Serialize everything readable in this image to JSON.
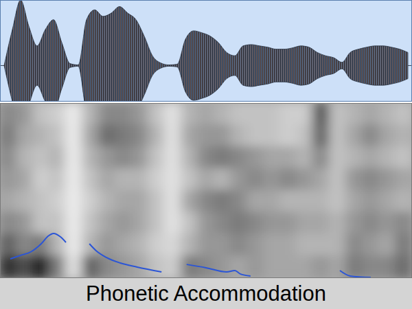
{
  "chart_data": {
    "type": "spectrogram",
    "title": "Phonetic Accommodation",
    "tick_labels": false,
    "xlim": [
      0,
      100
    ],
    "waveform": {
      "ylim": [
        -0.55,
        1
      ],
      "x": [
        1,
        3,
        5,
        7,
        9,
        11,
        13,
        15,
        17,
        19,
        21,
        23,
        25,
        27,
        29,
        31,
        33,
        35,
        37,
        39,
        41,
        43,
        45,
        47,
        49,
        51,
        53,
        55,
        57,
        59,
        61,
        63,
        65,
        67,
        69,
        71,
        73,
        75,
        77,
        79,
        81,
        83,
        85,
        87,
        89,
        91,
        93,
        95,
        97,
        99
      ],
      "values": [
        0,
        0.55,
        1.0,
        0.6,
        0.3,
        0.55,
        0.7,
        0.35,
        0.03,
        0.01,
        0.7,
        0.85,
        0.75,
        0.8,
        0.9,
        0.8,
        0.7,
        0.45,
        0.15,
        0.04,
        0.01,
        0.02,
        0.4,
        0.53,
        0.5,
        0.45,
        0.35,
        0.2,
        0.15,
        0.3,
        0.32,
        0.3,
        0.28,
        0.25,
        0.25,
        0.27,
        0.3,
        0.28,
        0.2,
        0.15,
        0.12,
        0.05,
        0.2,
        0.25,
        0.28,
        0.3,
        0.3,
        0.28,
        0.25,
        0.2
      ]
    },
    "cells": {
      "x": [
        2,
        6,
        10,
        14,
        18,
        22,
        26,
        30,
        34,
        38,
        42,
        46,
        50,
        54,
        58,
        62,
        66,
        70,
        74,
        78,
        82,
        86,
        90,
        94,
        98
      ],
      "rows": [
        [
          0.55,
          0.5,
          0.35,
          0.3,
          0.15,
          0.4,
          0.55,
          0.55,
          0.5,
          0.35,
          0.2,
          0.4,
          0.45,
          0.4,
          0.35,
          0.35,
          0.35,
          0.3,
          0.3,
          0.75,
          0.35,
          0.4,
          0.45,
          0.4,
          0.35
        ],
        [
          0.6,
          0.45,
          0.4,
          0.35,
          0.15,
          0.45,
          0.65,
          0.6,
          0.55,
          0.4,
          0.2,
          0.45,
          0.5,
          0.5,
          0.4,
          0.35,
          0.35,
          0.3,
          0.35,
          0.7,
          0.35,
          0.45,
          0.55,
          0.45,
          0.4
        ],
        [
          0.55,
          0.4,
          0.35,
          0.4,
          0.15,
          0.4,
          0.5,
          0.55,
          0.5,
          0.35,
          0.2,
          0.4,
          0.55,
          0.6,
          0.55,
          0.5,
          0.45,
          0.45,
          0.4,
          0.55,
          0.35,
          0.4,
          0.45,
          0.4,
          0.35
        ],
        [
          0.5,
          0.45,
          0.3,
          0.35,
          0.15,
          0.35,
          0.45,
          0.4,
          0.4,
          0.3,
          0.2,
          0.35,
          0.45,
          0.4,
          0.5,
          0.55,
          0.5,
          0.55,
          0.5,
          0.45,
          0.35,
          0.5,
          0.55,
          0.5,
          0.45
        ],
        [
          0.45,
          0.4,
          0.35,
          0.3,
          0.15,
          0.3,
          0.4,
          0.45,
          0.45,
          0.35,
          0.2,
          0.45,
          0.55,
          0.6,
          0.55,
          0.45,
          0.45,
          0.4,
          0.4,
          0.4,
          0.35,
          0.45,
          0.5,
          0.45,
          0.4
        ],
        [
          0.55,
          0.5,
          0.35,
          0.35,
          0.15,
          0.35,
          0.45,
          0.5,
          0.45,
          0.35,
          0.2,
          0.35,
          0.5,
          0.55,
          0.6,
          0.55,
          0.5,
          0.5,
          0.45,
          0.45,
          0.4,
          0.5,
          0.55,
          0.5,
          0.55
        ],
        [
          0.7,
          0.55,
          0.6,
          0.4,
          0.15,
          0.4,
          0.5,
          0.45,
          0.4,
          0.3,
          0.25,
          0.4,
          0.5,
          0.5,
          0.55,
          0.5,
          0.45,
          0.45,
          0.4,
          0.4,
          0.4,
          0.55,
          0.5,
          0.45,
          0.6
        ],
        [
          0.85,
          0.75,
          0.9,
          0.6,
          0.2,
          0.7,
          0.55,
          0.5,
          0.45,
          0.35,
          0.3,
          0.6,
          0.55,
          0.5,
          0.45,
          0.5,
          0.45,
          0.45,
          0.45,
          0.5,
          0.45,
          0.6,
          0.55,
          0.55,
          0.65
        ]
      ]
    },
    "ylim": [
      0,
      100
    ],
    "series": [
      {
        "type": "line",
        "color": "#2b55d6",
        "x": [
          2.5,
          5,
          7.5,
          10,
          11.7,
          13,
          14.7,
          16,
          null,
          21.7,
          23.3,
          25.8,
          29.2,
          33.3,
          39.2,
          null,
          45.3,
          50,
          55,
          57,
          58.3,
          60.8,
          null,
          82.5,
          85,
          90
        ],
        "values": [
          11,
          13,
          15,
          19.6,
          24,
          25.5,
          23.5,
          20.4,
          null,
          19.6,
          15.7,
          11.8,
          8.6,
          6.3,
          3.5,
          null,
          7.8,
          5.9,
          3.5,
          4.3,
          2.4,
          1.2,
          null,
          4.3,
          1.2,
          0.4
        ]
      }
    ]
  }
}
